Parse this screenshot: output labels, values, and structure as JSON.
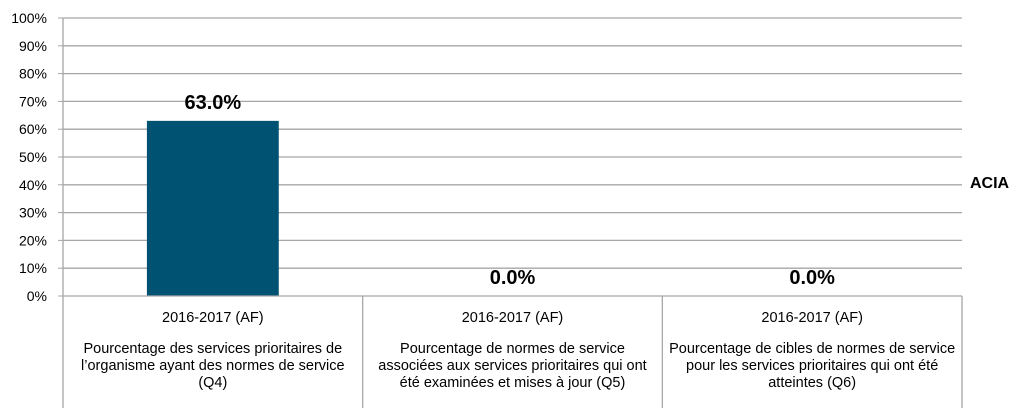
{
  "chart_data": {
    "type": "bar",
    "ylim": [
      0,
      100
    ],
    "y_ticks": [
      "0%",
      "10%",
      "20%",
      "30%",
      "40%",
      "50%",
      "60%",
      "70%",
      "80%",
      "90%",
      "100%"
    ],
    "y_tick_values": [
      0,
      10,
      20,
      30,
      40,
      50,
      60,
      70,
      80,
      90,
      100
    ],
    "grid": true,
    "legend_position": "right",
    "bar_color": "#005272",
    "series": [
      {
        "name": "ACIA",
        "values": [
          63.0,
          0.0,
          0.0
        ]
      }
    ],
    "data_labels": [
      "63.0%",
      "0.0%",
      "0.0%"
    ],
    "categories": [
      {
        "year": "2016-2017 (AF)",
        "description": "Pourcentage des services prioritaires de l’organisme ayant des normes de service (Q4)"
      },
      {
        "year": "2016-2017 (AF)",
        "description": "Pourcentage de normes de service associées aux services prioritaires qui ont été examinées et mises à jour (Q5)"
      },
      {
        "year": "2016-2017 (AF)",
        "description": "Pourcentage de cibles de normes de service pour les services prioritaires qui ont été atteintes (Q6)"
      }
    ]
  }
}
